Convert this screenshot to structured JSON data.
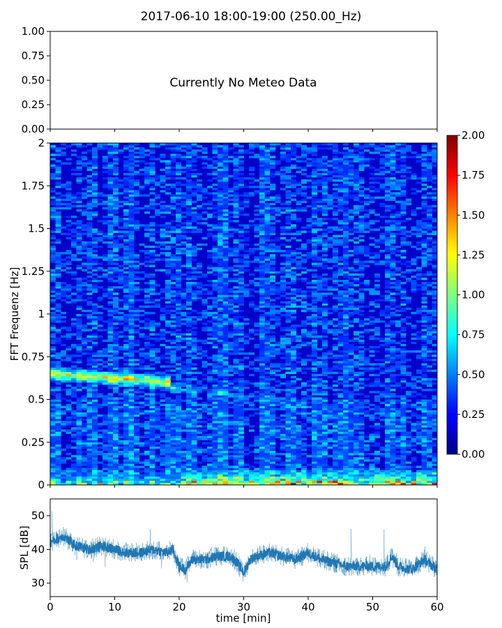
{
  "figure": {
    "title": "2017-06-10 18:00-19:00 (250.00_Hz)"
  },
  "chart_data": [
    {
      "type": "line",
      "panel": "meteo",
      "message": "Currently No Meteo Data",
      "xlim": [
        0,
        60
      ],
      "ylim": [
        0,
        1
      ],
      "yticks": [
        "0.00",
        "0.25",
        "0.50",
        "0.75",
        "1.00"
      ],
      "ytick_values": [
        0,
        0.25,
        0.5,
        0.75,
        1.0
      ],
      "xticks_shown_labels": false
    },
    {
      "type": "heatmap",
      "panel": "spectrogram",
      "ylabel": "FFT Frequenz [Hz]",
      "xlim": [
        0,
        60
      ],
      "ylim": [
        0,
        2
      ],
      "yticks": [
        "0",
        "0.25",
        "0.5",
        "0.75",
        "1",
        "1.25",
        "1.5",
        "1.75",
        "2"
      ],
      "ytick_values": [
        0,
        0.25,
        0.5,
        0.75,
        1,
        1.25,
        1.5,
        1.75,
        2
      ],
      "colormap": "jet",
      "colorbar": {
        "range": [
          0,
          2
        ],
        "ticks": [
          "0.00",
          "0.25",
          "0.50",
          "0.75",
          "1.00",
          "1.25",
          "1.50",
          "1.75",
          "2.00"
        ],
        "tick_values": [
          0,
          0.25,
          0.5,
          0.75,
          1.0,
          1.25,
          1.5,
          1.75,
          2.0
        ]
      },
      "features": {
        "background_level": 0.25,
        "band": {
          "x": [
            0,
            19
          ],
          "y_start": 0.65,
          "y_end": 0.6,
          "level": 0.9
        },
        "faint_band": {
          "x": [
            19,
            35
          ],
          "y_start": 0.57,
          "y_end": 0.5,
          "level": 0.55
        },
        "low_freq_energy": {
          "y": [
            0,
            0.1
          ],
          "x": [
            20,
            60
          ],
          "level": 1.2
        }
      }
    },
    {
      "type": "line",
      "panel": "spl",
      "ylabel": "SPL [dB]",
      "xlabel": "time [min]",
      "xlim": [
        0,
        60
      ],
      "ylim": [
        26,
        55
      ],
      "yticks": [
        "30",
        "40",
        "50"
      ],
      "ytick_values": [
        30,
        40,
        50
      ],
      "xticks": [
        "0",
        "10",
        "20",
        "30",
        "40",
        "50",
        "60"
      ],
      "xtick_values": [
        0,
        10,
        20,
        30,
        40,
        50,
        60
      ],
      "color": "#1f77b4",
      "series": [
        {
          "x": [
            0,
            2,
            4,
            6,
            8,
            10,
            12,
            14,
            16,
            18,
            19,
            20,
            21,
            22,
            24,
            26,
            28,
            29,
            30,
            31,
            32,
            34,
            36,
            38,
            40,
            42,
            44,
            46,
            48,
            50,
            52,
            53,
            54,
            56,
            58,
            60
          ],
          "y": [
            42,
            44,
            41,
            40,
            41,
            40,
            39,
            39,
            40,
            39,
            40,
            35,
            34,
            37,
            37,
            38,
            38,
            36,
            33,
            37,
            38,
            39,
            38,
            37,
            39,
            37,
            36,
            35,
            35,
            35,
            35,
            38,
            35,
            34,
            37,
            34
          ]
        }
      ]
    }
  ]
}
